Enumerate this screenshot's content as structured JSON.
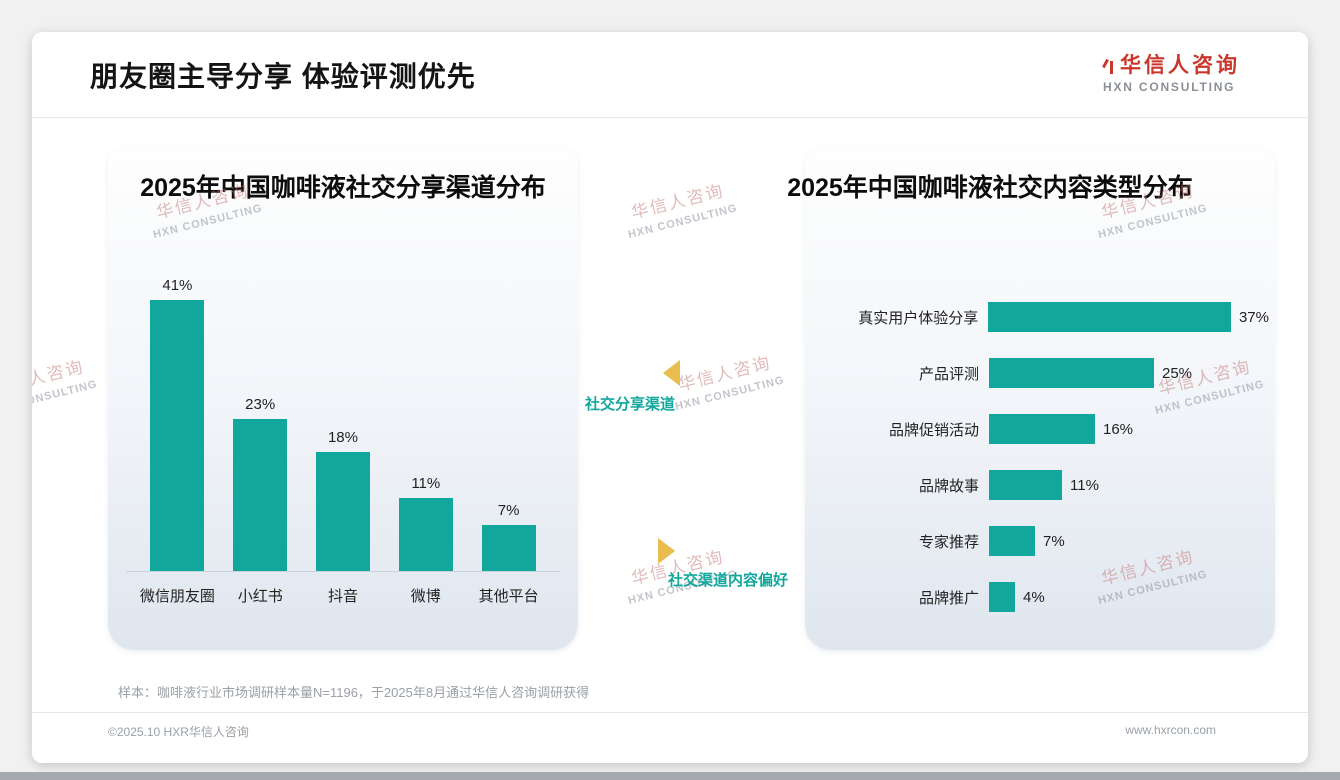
{
  "header": {
    "title": "朋友圈主导分享 体验评测优先",
    "logo_cn": "华信人咨询",
    "logo_en": "HXN CONSULTING"
  },
  "watermark": {
    "cn": "华信人咨询",
    "en": "HXN CONSULTING"
  },
  "annotations": {
    "share_channel": "社交分享渠道",
    "content_preference": "社交渠道内容偏好"
  },
  "footnote": "样本：咖啡液行业市场调研样本量N=1196，于2025年8月通过华信人咨询调研获得",
  "footer": {
    "left": "©2025.10 HXR华信人咨询",
    "right": "www.hxrcon.com"
  },
  "colors": {
    "bar_teal": "#12a79d",
    "accent_gold": "#e8bc4f",
    "brand_red": "#c9372c"
  },
  "chart_data": [
    {
      "type": "bar",
      "title": "2025年中国咖啡液社交分享渠道分布",
      "categories": [
        "微信朋友圈",
        "小红书",
        "抖音",
        "微博",
        "其他平台"
      ],
      "values": [
        41,
        23,
        18,
        11,
        7
      ],
      "unit": "%",
      "ylim": [
        0,
        45
      ],
      "grid": false,
      "legend": "none",
      "bar_color": "#12a79d"
    },
    {
      "type": "bar-horizontal",
      "title": "2025年中国咖啡液社交内容类型分布",
      "categories": [
        "真实用户体验分享",
        "产品评测",
        "品牌促销活动",
        "品牌故事",
        "专家推荐",
        "品牌推广"
      ],
      "values": [
        37,
        25,
        16,
        11,
        7,
        4
      ],
      "unit": "%",
      "xlim": [
        0,
        40
      ],
      "grid": false,
      "legend": "none",
      "bar_color": "#12a79d"
    }
  ]
}
